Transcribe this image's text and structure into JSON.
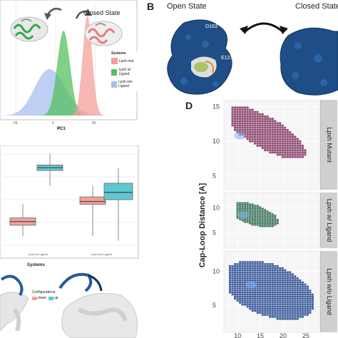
{
  "panel_b": {
    "letter": "B",
    "open_label": "Open State",
    "closed_label": "Closed State",
    "residue_1": "D163",
    "residue_2": "E123"
  },
  "panel_a": {
    "closed_label": "Closed State",
    "xlabel": "PC1",
    "x_ticks": [
      "-25",
      "0",
      "25"
    ],
    "legend_title": "Systems",
    "legend_items": [
      "Lpxh mut",
      "Lpxh w/ Ligand",
      "Lpxh w/o Ligand"
    ]
  },
  "panel_c": {
    "xlabel": "Systems",
    "x_ticks": [
      "Lpxh w/ Ligand",
      "Lpxh w/o Ligand"
    ]
  },
  "panel_bottom_left": {
    "legend_title": "Configurations",
    "legend_items": [
      "down",
      "up"
    ]
  },
  "panel_d": {
    "letter": "D",
    "ylabel": "Cap-Loop Distance [A]",
    "facets": [
      "Lpxh Mutant",
      "Lpxh w/ Ligand",
      "Lpxh w/o Ligand"
    ],
    "x_ticks": [
      "10",
      "15",
      "20",
      "25"
    ],
    "facet_y_ticks": [
      [
        "15",
        "10",
        "5"
      ],
      [
        "10",
        "5"
      ],
      [
        "10",
        "5"
      ]
    ]
  },
  "colors": {
    "mut": "#f4a09a",
    "ligand": "#55c060",
    "noligand": "#a7bfee",
    "box_teal": "#5cc9d2",
    "protein_blue": "#1f4e86",
    "heat_mut": "#8e4a72",
    "heat_lig": "#2e6b4e",
    "heat_nolig": "#3a5a9a"
  },
  "chart_data": [
    {
      "type": "area",
      "panel": "A",
      "xlabel": "PC1",
      "x_ticks": [
        -25,
        0,
        25
      ],
      "series": [
        {
          "name": "Lpxh mut",
          "peak_x": 20,
          "peak_height": 1.0,
          "width": 3
        },
        {
          "name": "Lpxh w/ Ligand",
          "peak_x": 5,
          "peak_height": 0.85,
          "width": 4
        },
        {
          "name": "Lpxh w/o Ligand",
          "peak_x": 0,
          "peak_height": 0.3,
          "width": 9
        }
      ]
    },
    {
      "type": "box",
      "panel": "C",
      "xlabel": "Systems",
      "categories": [
        "Lpxh w/ Ligand",
        "Lpxh w/o Ligand"
      ],
      "series": [
        {
          "name": "down",
          "boxes": [
            {
              "min": 0.1,
              "q1": 0.22,
              "median": 0.26,
              "q3": 0.3,
              "max": 0.45
            },
            {
              "min": 0.1,
              "q1": 0.45,
              "median": 0.48,
              "q3": 0.53,
              "max": 0.65
            }
          ]
        },
        {
          "name": "up",
          "boxes": [
            {
              "min": 0.65,
              "q1": 0.82,
              "median": 0.85,
              "q3": 0.88,
              "max": 1.0
            },
            {
              "min": 0.05,
              "q1": 0.5,
              "median": 0.58,
              "q3": 0.68,
              "max": 0.85
            }
          ]
        }
      ]
    },
    {
      "type": "heatmap",
      "panel": "D",
      "xlabel": "",
      "ylabel": "Cap-Loop Distance [A]",
      "xlim": [
        7,
        28
      ],
      "facets": [
        {
          "name": "Lpxh Mutant",
          "ylim": [
            3,
            16
          ]
        },
        {
          "name": "Lpxh w/ Ligand",
          "ylim": [
            2,
            13
          ]
        },
        {
          "name": "Lpxh w/o Ligand",
          "ylim": [
            1,
            13
          ]
        }
      ]
    }
  ]
}
